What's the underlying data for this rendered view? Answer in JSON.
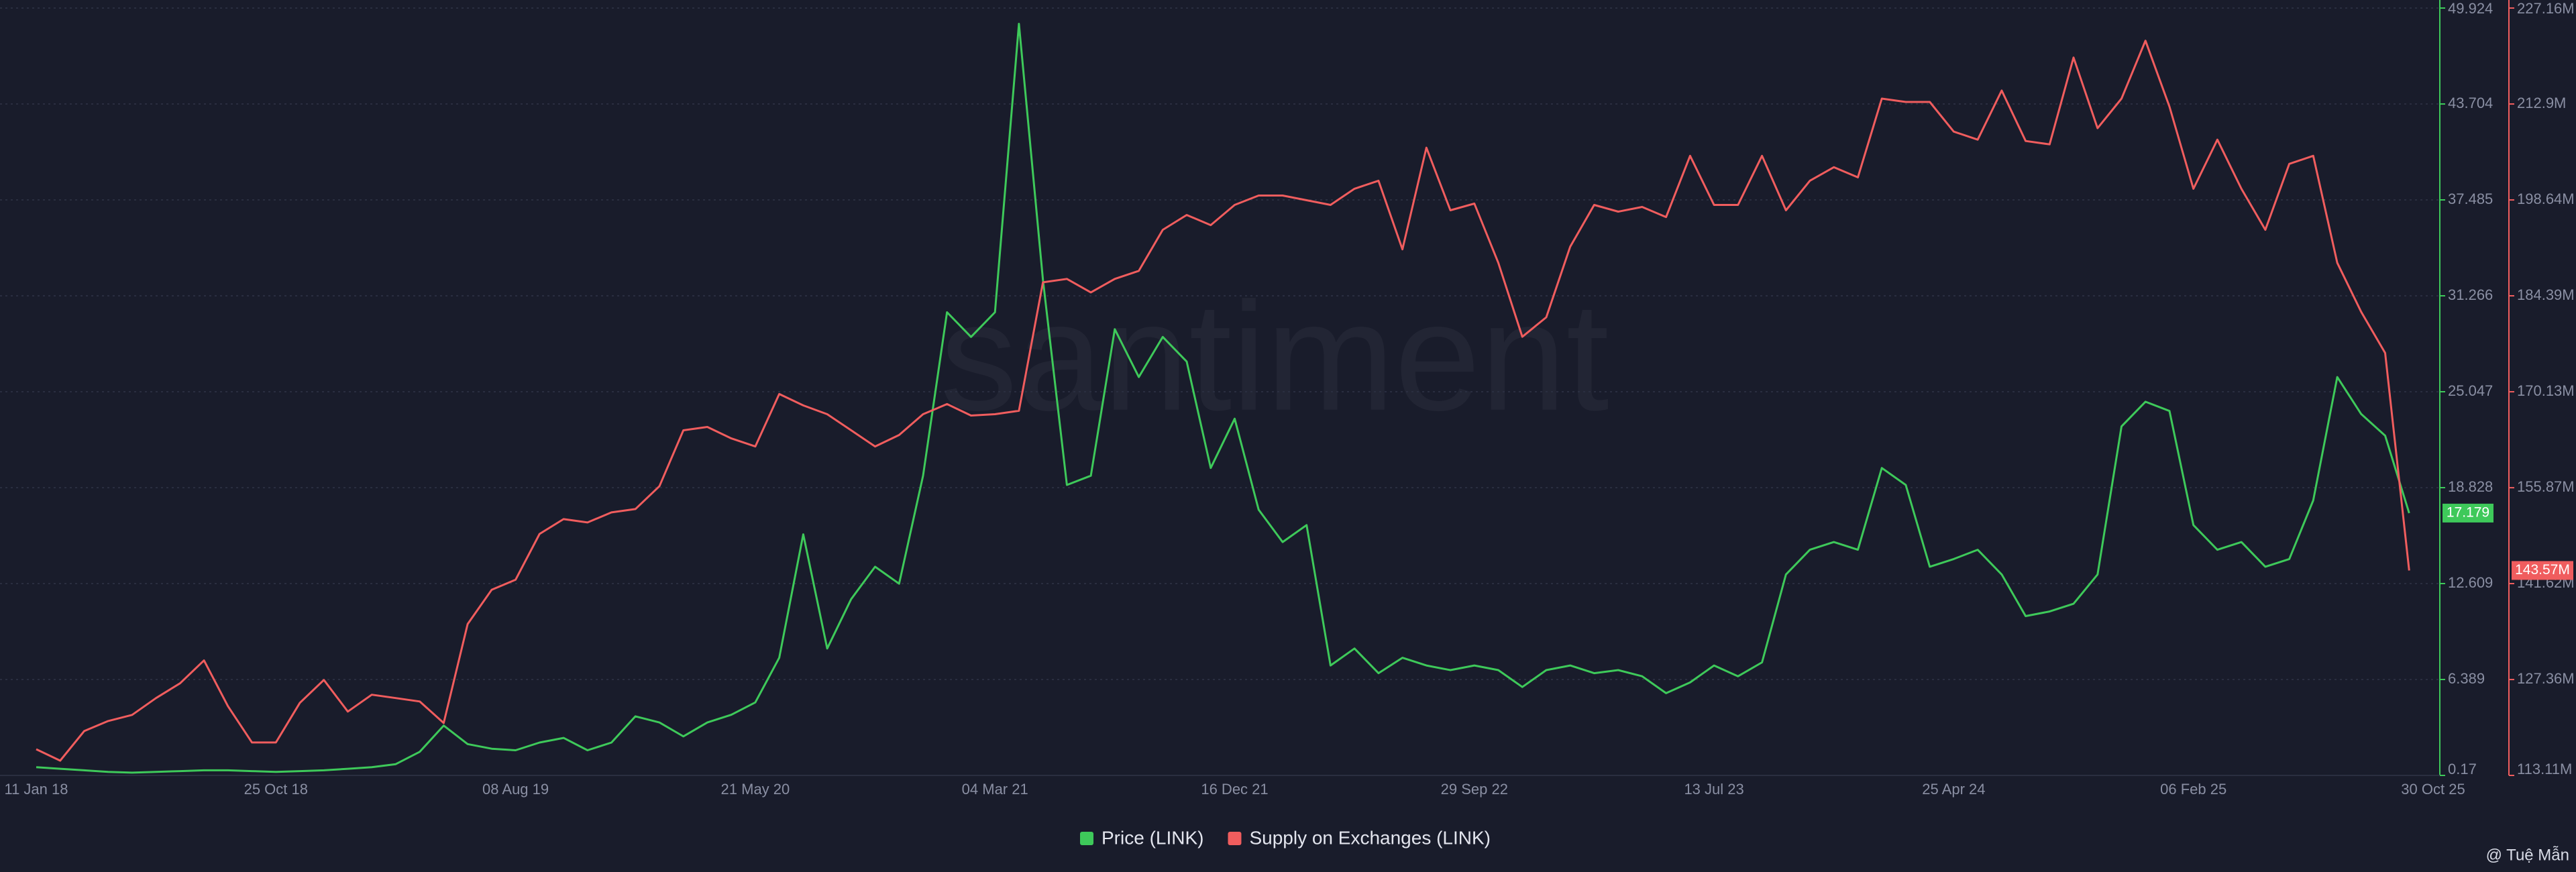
{
  "chart_data": {
    "type": "line",
    "watermark": "santiment",
    "credit": "@ Tuệ Mẫn",
    "categories": [
      "11 Jan 18",
      null,
      null,
      null,
      null,
      null,
      null,
      null,
      null,
      null,
      "25 Oct 18",
      null,
      null,
      null,
      null,
      null,
      null,
      null,
      null,
      null,
      "08 Aug 19",
      null,
      null,
      null,
      null,
      null,
      null,
      null,
      null,
      null,
      "21 May 20",
      null,
      null,
      null,
      null,
      null,
      null,
      null,
      null,
      null,
      "04 Mar 21",
      null,
      null,
      null,
      null,
      null,
      null,
      null,
      null,
      null,
      "16 Dec 21",
      null,
      null,
      null,
      null,
      null,
      null,
      null,
      null,
      null,
      "29 Sep 22",
      null,
      null,
      null,
      null,
      null,
      null,
      null,
      null,
      null,
      "13 Jul 23",
      null,
      null,
      null,
      null,
      null,
      null,
      null,
      null,
      null,
      "25 Apr 24",
      null,
      null,
      null,
      null,
      null,
      null,
      null,
      null,
      null,
      "06 Feb 25",
      null,
      null,
      null,
      null,
      null,
      null,
      null,
      null,
      null,
      "30 Oct 25"
    ],
    "series": [
      {
        "name": "Price (LINK)",
        "color": "#3ec95a",
        "axis": "y",
        "values": [
          0.7,
          0.6,
          0.5,
          0.4,
          0.35,
          0.4,
          0.45,
          0.5,
          0.5,
          0.45,
          0.4,
          0.45,
          0.5,
          0.6,
          0.7,
          0.9,
          1.7,
          3.4,
          2.2,
          1.9,
          1.8,
          2.3,
          2.6,
          1.8,
          2.3,
          4.0,
          3.6,
          2.7,
          3.6,
          4.1,
          4.9,
          7.8,
          15.8,
          8.4,
          11.6,
          13.7,
          12.6,
          19.6,
          30.2,
          28.6,
          30.2,
          48.9,
          32.3,
          19.0,
          19.6,
          29.1,
          26.0,
          28.6,
          27.0,
          20.1,
          23.3,
          17.4,
          15.3,
          16.4,
          7.3,
          8.4,
          6.8,
          7.8,
          7.3,
          7.0,
          7.3,
          7.0,
          5.9,
          7.0,
          7.3,
          6.8,
          7.0,
          6.6,
          5.5,
          6.2,
          7.3,
          6.6,
          7.5,
          13.2,
          14.8,
          15.3,
          14.8,
          20.1,
          19.0,
          13.7,
          14.2,
          14.8,
          13.2,
          10.5,
          10.8,
          11.3,
          13.2,
          22.8,
          24.4,
          23.8,
          16.4,
          14.8,
          15.3,
          13.7,
          14.2,
          18.0,
          26.0,
          23.6,
          22.2,
          17.179,
          null
        ]
      },
      {
        "name": "Supply on Exchanges (LINK)",
        "color": "#f05d5e",
        "axis": "y2",
        "last_value_label": "143.57M",
        "values": [
          117000000,
          115300000,
          119700000,
          121200000,
          122100000,
          124600000,
          126800000,
          130200000,
          123400000,
          118000000,
          118000000,
          123900000,
          127300000,
          122600000,
          125100000,
          124600000,
          124100000,
          120900000,
          135600000,
          140700000,
          142200000,
          149000000,
          151200000,
          150700000,
          152200000,
          152700000,
          156100000,
          164400000,
          164900000,
          163200000,
          162000000,
          169800000,
          168100000,
          166800000,
          164400000,
          162000000,
          163700000,
          166800000,
          168300000,
          166600000,
          166800000,
          167300000,
          186400000,
          186900000,
          184900000,
          186900000,
          188100000,
          194200000,
          196400000,
          194900000,
          197900000,
          199300000,
          199300000,
          198600000,
          197900000,
          200300000,
          201500000,
          191300000,
          206400000,
          197100000,
          198100000,
          189300000,
          178300000,
          181200000,
          191700000,
          197900000,
          196900000,
          197600000,
          196100000,
          205200000,
          197900000,
          197900000,
          205200000,
          197100000,
          201500000,
          203500000,
          202000000,
          213700000,
          213200000,
          213200000,
          208800000,
          207600000,
          214900000,
          207400000,
          206900000,
          219800000,
          209300000,
          213700000,
          222300000,
          212500000,
          200300000,
          207600000,
          200300000,
          194200000,
          204000000,
          205200000,
          189300000,
          182000000,
          175900000,
          143570000,
          null
        ]
      }
    ],
    "ylim": [
      0.17,
      49.924
    ],
    "yticks": [
      0.17,
      6.389,
      12.609,
      18.828,
      25.047,
      31.266,
      37.485,
      43.704,
      49.924
    ],
    "y2lim": [
      113110000,
      227160000
    ],
    "y2ticks": [
      {
        "value": 113110000,
        "label": "113.11M"
      },
      {
        "value": 127360000,
        "label": "127.36M"
      },
      {
        "value": 141620000,
        "label": "141.62M"
      },
      {
        "value": 155870000,
        "label": "155.87M"
      },
      {
        "value": 170130000,
        "label": "170.13M"
      },
      {
        "value": 184390000,
        "label": "184.39M"
      },
      {
        "value": 198640000,
        "label": "198.64M"
      },
      {
        "value": 212900000,
        "label": "212.9M"
      },
      {
        "value": 227160000,
        "label": "227.16M"
      }
    ],
    "grid": true
  }
}
